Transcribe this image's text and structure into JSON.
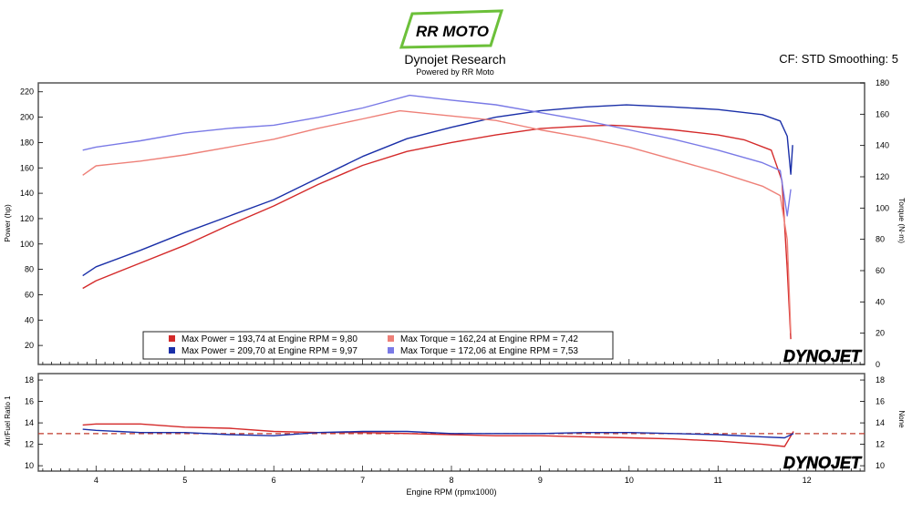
{
  "header": {
    "logo_text": "RR MOTO",
    "title": "Dynojet Research",
    "subtitle": "Powered by RR Moto",
    "correction": "CF: STD Smoothing: 5"
  },
  "brand": {
    "watermark": "DYNOJET"
  },
  "colors": {
    "power_run1": "#d42a2a",
    "power_run2": "#1a2fa8",
    "torque_run1": "#ee8078",
    "torque_run2": "#7a7ae6",
    "afr_reference": "#c0392b",
    "logo_green": "#6cc03a"
  },
  "chart_data": [
    {
      "type": "line",
      "title": "",
      "xlabel": "Engine RPM (rpmx1000)",
      "ylabel": "Power (hp)",
      "y2label": "Torque (N·m)",
      "xlim": [
        3.35,
        12.65
      ],
      "ylim": [
        5,
        227
      ],
      "y2lim": [
        0,
        180
      ],
      "xticks": [
        4,
        5,
        6,
        7,
        8,
        9,
        10,
        11,
        12
      ],
      "yticks": [
        20,
        40,
        60,
        80,
        100,
        120,
        140,
        160,
        180,
        200,
        220
      ],
      "y2ticks": [
        0,
        20,
        40,
        60,
        80,
        100,
        120,
        140,
        160,
        180
      ],
      "grid": false,
      "legend_position": "bottom-center",
      "legend": [
        "Max Power = 193,74 at Engine RPM = 9,80",
        "Max Torque = 162,24 at Engine RPM = 7,42",
        "Max Power = 209,70 at Engine RPM = 9,97",
        "Max Torque = 172,06 at Engine RPM = 7,53"
      ],
      "series": [
        {
          "name": "Power run 1",
          "axis": "left",
          "x": [
            3.85,
            4.0,
            4.5,
            5.0,
            5.5,
            6.0,
            6.5,
            7.0,
            7.5,
            8.0,
            8.5,
            9.0,
            9.5,
            9.8,
            10.0,
            10.5,
            11.0,
            11.3,
            11.6,
            11.72,
            11.78,
            11.82
          ],
          "y": [
            65,
            71,
            85,
            99,
            115,
            130,
            147,
            162,
            173,
            180,
            186,
            191,
            193,
            193.7,
            193,
            190,
            186,
            182,
            174,
            150,
            80,
            25
          ]
        },
        {
          "name": "Power run 2",
          "axis": "left",
          "x": [
            3.85,
            4.0,
            4.5,
            5.0,
            5.5,
            6.0,
            6.5,
            7.0,
            7.5,
            8.0,
            8.5,
            9.0,
            9.5,
            9.97,
            10.5,
            11.0,
            11.5,
            11.7,
            11.78,
            11.82,
            11.84
          ],
          "y": [
            75,
            82,
            95,
            109,
            122,
            135,
            152,
            169,
            183,
            192,
            200,
            205,
            208,
            209.7,
            208,
            206,
            202,
            197,
            185,
            155,
            178
          ]
        },
        {
          "name": "Torque run 1",
          "axis": "right",
          "x": [
            3.85,
            4.0,
            4.5,
            5.0,
            5.5,
            6.0,
            6.5,
            7.0,
            7.42,
            7.8,
            8.5,
            9.0,
            9.5,
            10.0,
            10.5,
            11.0,
            11.5,
            11.7,
            11.78,
            11.82
          ],
          "y": [
            121,
            127,
            130,
            134,
            139,
            144,
            151,
            157,
            162.2,
            160,
            156,
            150,
            145,
            139,
            131,
            123,
            114,
            108,
            80,
            20
          ]
        },
        {
          "name": "Torque run 2",
          "axis": "right",
          "x": [
            3.85,
            4.0,
            4.5,
            5.0,
            5.5,
            6.0,
            6.5,
            7.0,
            7.53,
            8.0,
            8.5,
            9.0,
            9.5,
            10.0,
            10.5,
            11.0,
            11.5,
            11.7,
            11.78,
            11.82
          ],
          "y": [
            137,
            139,
            143,
            148,
            151,
            153,
            158,
            164,
            172.1,
            169,
            166,
            161,
            156,
            150,
            144,
            137,
            129,
            124,
            95,
            112
          ]
        }
      ]
    },
    {
      "type": "line",
      "title": "",
      "ylabel": "Air/Fuel Ratio 1",
      "y2label": "None",
      "xlim": [
        3.35,
        12.65
      ],
      "ylim": [
        9.5,
        18.6
      ],
      "yticks": [
        10,
        12,
        14,
        16,
        18
      ],
      "y2ticks": [
        10,
        12,
        14,
        16,
        18
      ],
      "reference_line": 13.0,
      "series": [
        {
          "name": "AFR run 1",
          "x": [
            3.85,
            4.0,
            4.5,
            5.0,
            5.5,
            6.0,
            6.5,
            7.0,
            7.5,
            8.0,
            8.5,
            9.0,
            9.5,
            10.0,
            10.5,
            11.0,
            11.5,
            11.75,
            11.85
          ],
          "y": [
            13.8,
            13.9,
            13.9,
            13.6,
            13.5,
            13.2,
            13.1,
            13.1,
            13.0,
            12.9,
            12.8,
            12.8,
            12.7,
            12.6,
            12.5,
            12.3,
            12.0,
            11.8,
            13.2
          ]
        },
        {
          "name": "AFR run 2",
          "x": [
            3.85,
            4.0,
            4.5,
            5.0,
            5.5,
            6.0,
            6.5,
            7.0,
            7.5,
            8.0,
            8.5,
            9.0,
            9.5,
            10.0,
            10.5,
            11.0,
            11.5,
            11.75,
            11.85
          ],
          "y": [
            13.4,
            13.3,
            13.1,
            13.1,
            12.9,
            12.8,
            13.1,
            13.2,
            13.2,
            13.0,
            13.0,
            13.0,
            13.1,
            13.1,
            13.0,
            12.9,
            12.7,
            12.6,
            13.0
          ]
        }
      ]
    }
  ]
}
